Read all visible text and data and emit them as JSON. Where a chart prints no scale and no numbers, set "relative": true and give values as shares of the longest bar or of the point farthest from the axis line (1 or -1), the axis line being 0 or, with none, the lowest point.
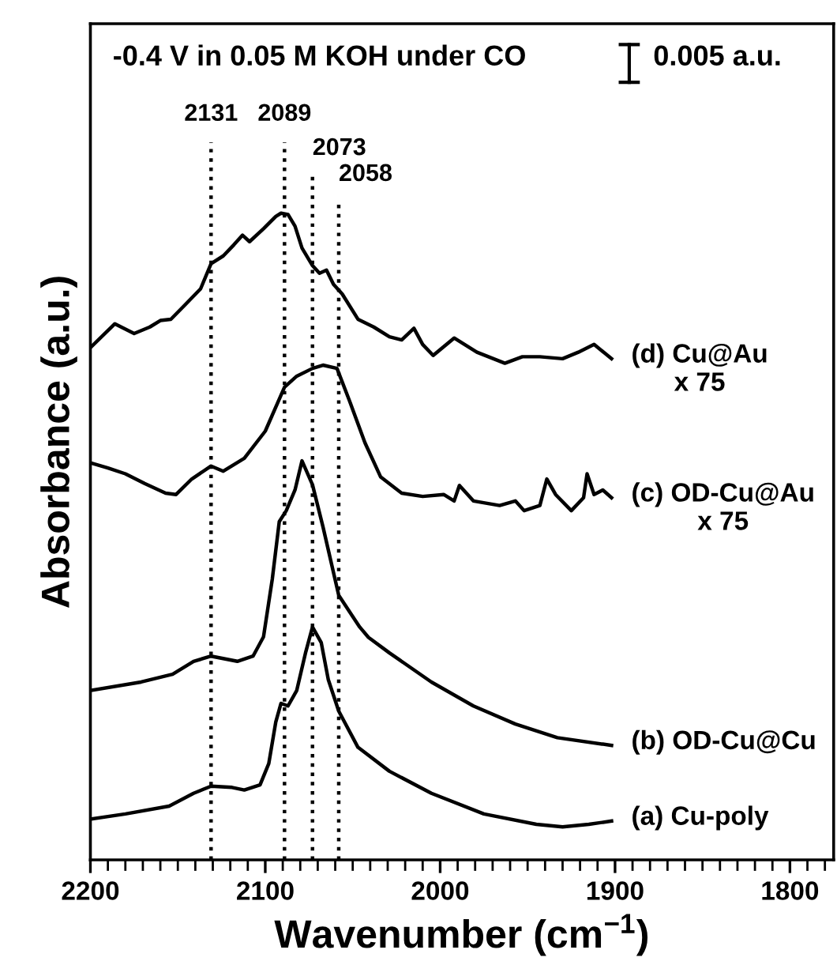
{
  "chart_data": {
    "type": "line",
    "relative": true,
    "xlabel": "Wavenumber (cm$^{−1}$)",
    "ylabel": "Absorbance (a.u.)",
    "xlim": [
      2200,
      1775
    ],
    "xticks": [
      2200,
      2100,
      2000,
      1900,
      1800
    ],
    "grid": false,
    "legend": false,
    "marker": "none",
    "line_style": "solid",
    "tick_labels": "x",
    "annotations": [
      "-0.4 V in 0.05 M KOH under CO",
      "0.005 a.u."
    ],
    "ref_lines": [
      {
        "axis": "x",
        "value": 2131,
        "label": "2131",
        "line_style": "dotted",
        "color": "#000000"
      },
      {
        "axis": "x",
        "value": 2089,
        "label": "2089",
        "line_style": "dotted",
        "color": "#000000"
      },
      {
        "axis": "x",
        "value": 2073,
        "label": "2073",
        "line_style": "dotted",
        "color": "#000000"
      },
      {
        "axis": "x",
        "value": 2058,
        "label": "2058",
        "line_style": "dotted",
        "color": "#000000"
      }
    ],
    "series": [
      {
        "name": "(d) Cu@Au\nx 75",
        "color": "#000000",
        "x": [
          2200,
          2186,
          2175,
          2166,
          2160,
          2154,
          2146,
          2137,
          2131,
          2124,
          2118,
          2113,
          2109,
          2101,
          2094,
          2091,
          2087,
          2083,
          2079,
          2073,
          2069,
          2065,
          2061,
          2056,
          2047,
          2038,
          2029,
          2022,
          2015,
          2010,
          2004,
          1992,
          1979,
          1963,
          1953,
          1943,
          1930,
          1921,
          1912,
          1902
        ],
        "values": [
          0.792,
          0.829,
          0.814,
          0.824,
          0.834,
          0.836,
          0.858,
          0.883,
          0.922,
          0.934,
          0.951,
          0.966,
          0.956,
          0.976,
          0.995,
          1.0,
          0.998,
          0.98,
          0.946,
          0.919,
          0.907,
          0.912,
          0.89,
          0.875,
          0.836,
          0.824,
          0.809,
          0.804,
          0.822,
          0.797,
          0.78,
          0.807,
          0.785,
          0.768,
          0.778,
          0.778,
          0.775,
          0.785,
          0.797,
          0.775
        ]
      },
      {
        "name": "(c) OD-Cu@Au\nx 75",
        "color": "#000000",
        "x": [
          2200,
          2190,
          2180,
          2169,
          2157,
          2151,
          2142,
          2131,
          2124,
          2112,
          2100,
          2089,
          2082,
          2073,
          2067,
          2059,
          2052,
          2043,
          2034,
          2022,
          2010,
          1998,
          1992,
          1989,
          1981,
          1966,
          1957,
          1952,
          1943,
          1939,
          1934,
          1925,
          1918,
          1916,
          1912,
          1907,
          1902
        ],
        "values": [
          0.614,
          0.606,
          0.597,
          0.582,
          0.567,
          0.565,
          0.589,
          0.609,
          0.601,
          0.621,
          0.663,
          0.731,
          0.748,
          0.76,
          0.765,
          0.76,
          0.711,
          0.645,
          0.592,
          0.567,
          0.562,
          0.565,
          0.555,
          0.579,
          0.555,
          0.548,
          0.555,
          0.54,
          0.548,
          0.589,
          0.565,
          0.54,
          0.56,
          0.597,
          0.565,
          0.572,
          0.56
        ]
      },
      {
        "name": "(b) OD-Cu@Cu",
        "color": "#000000",
        "x": [
          2200,
          2171,
          2153,
          2141,
          2131,
          2116,
          2107,
          2101,
          2096,
          2092,
          2088,
          2083,
          2079,
          2073,
          2067,
          2058,
          2046,
          2041,
          2029,
          2005,
          1981,
          1957,
          1933,
          1902
        ],
        "values": [
          0.262,
          0.275,
          0.287,
          0.307,
          0.315,
          0.307,
          0.315,
          0.345,
          0.434,
          0.523,
          0.54,
          0.572,
          0.617,
          0.58,
          0.515,
          0.409,
          0.36,
          0.344,
          0.32,
          0.275,
          0.238,
          0.21,
          0.189,
          0.177
        ]
      },
      {
        "name": "(a) Cu-poly",
        "color": "#000000",
        "x": [
          2200,
          2180,
          2155,
          2141,
          2131,
          2119,
          2112,
          2103,
          2098,
          2094,
          2091,
          2087,
          2082,
          2077,
          2073,
          2068,
          2064,
          2058,
          2047,
          2029,
          2005,
          1975,
          1945,
          1930,
          1915,
          1902
        ],
        "values": [
          0.063,
          0.071,
          0.083,
          0.103,
          0.114,
          0.112,
          0.108,
          0.116,
          0.149,
          0.213,
          0.242,
          0.238,
          0.262,
          0.32,
          0.36,
          0.336,
          0.279,
          0.23,
          0.174,
          0.137,
          0.103,
          0.071,
          0.055,
          0.051,
          0.055,
          0.06
        ]
      }
    ]
  }
}
